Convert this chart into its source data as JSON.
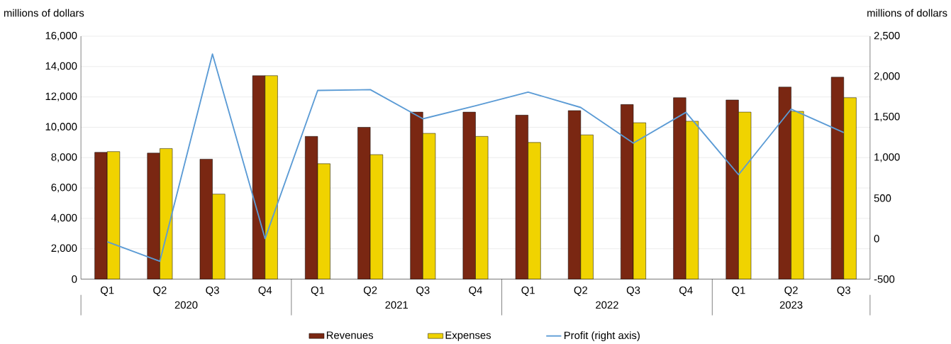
{
  "chart_data": {
    "type": "bar",
    "ylabel": "millions of dollars",
    "y2label": "millions of dollars",
    "categories": [
      "Q1",
      "Q2",
      "Q3",
      "Q4",
      "Q1",
      "Q2",
      "Q3",
      "Q4",
      "Q1",
      "Q2",
      "Q3",
      "Q4",
      "Q1",
      "Q2",
      "Q3"
    ],
    "annotations": [
      "2020",
      "2021",
      "2022",
      "2023"
    ],
    "series": [
      {
        "name": "Revenues",
        "color": "#7a2712",
        "values": [
          8350,
          8300,
          7900,
          13400,
          9400,
          10000,
          11000,
          11000,
          10800,
          11100,
          11500,
          11950,
          11800,
          12650,
          13300
        ]
      },
      {
        "name": "Expenses",
        "color": "#f0d300",
        "values": [
          8400,
          8600,
          5600,
          13400,
          7600,
          8200,
          9600,
          9400,
          9000,
          9500,
          10300,
          10400,
          11000,
          11050,
          11950
        ]
      },
      {
        "name": "Profit (right axis)",
        "type": "line",
        "axis": "y2",
        "color": "#5b9bd5",
        "values": [
          -40,
          -280,
          2280,
          0,
          1830,
          1840,
          1480,
          1640,
          1810,
          1620,
          1180,
          1560,
          790,
          1600,
          1310
        ]
      }
    ],
    "ylim": [
      0,
      16000
    ],
    "yticks": [
      0,
      {
        "value": 2000,
        "label": "2,000"
      },
      {
        "value": 4000,
        "label": "4,000"
      },
      {
        "value": 6000,
        "label": "6,000"
      },
      {
        "value": 8000,
        "label": "8,000"
      },
      {
        "value": 10000,
        "label": "10,000"
      },
      {
        "value": 12000,
        "label": "12,000"
      },
      {
        "value": 14000,
        "label": "14,000"
      },
      {
        "value": 16000,
        "label": "16,000"
      }
    ],
    "y2lim": [
      -500,
      2500
    ],
    "y2ticks": [
      -500,
      0,
      500,
      {
        "value": 1000,
        "label": "1,000"
      },
      {
        "value": 1500,
        "label": "1,500"
      },
      {
        "value": 2000,
        "label": "2,000"
      },
      {
        "value": 2500,
        "label": "2,500"
      }
    ],
    "grid": "y",
    "legend": "bottom",
    "marker": "none",
    "line_style": "solid"
  }
}
